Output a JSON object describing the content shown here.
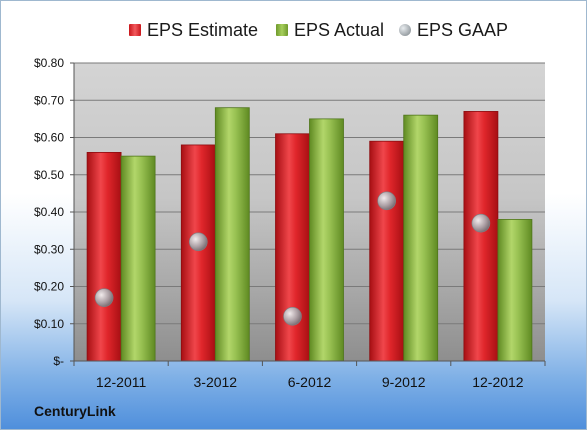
{
  "chart_data": {
    "type": "bar",
    "categories": [
      "12-2011",
      "3-2012",
      "6-2012",
      "9-2012",
      "12-2012"
    ],
    "series": [
      {
        "name": "EPS Estimate",
        "values": [
          0.56,
          0.58,
          0.61,
          0.59,
          0.67
        ],
        "color": "#d0181d"
      },
      {
        "name": "EPS Actual",
        "values": [
          0.55,
          0.68,
          0.65,
          0.66,
          0.38
        ],
        "color": "#8bb545"
      },
      {
        "name": "EPS GAAP",
        "values": [
          0.17,
          0.32,
          0.12,
          0.43,
          0.37
        ],
        "color": "#a9afb4",
        "marker": "bubble"
      }
    ],
    "ylim": [
      0,
      0.8
    ],
    "yticks": [
      0,
      0.1,
      0.2,
      0.3,
      0.4,
      0.5,
      0.6,
      0.7,
      0.8
    ],
    "ytick_labels": [
      "$-",
      "$0.10",
      "$0.20",
      "$0.30",
      "$0.40",
      "$0.50",
      "$0.60",
      "$0.70",
      "$0.80"
    ],
    "grid": true,
    "legend": "top"
  },
  "company": "CenturyLink"
}
